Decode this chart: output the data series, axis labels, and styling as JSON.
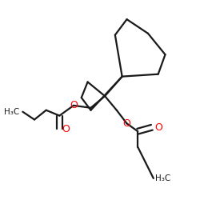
{
  "bg_color": "#ffffff",
  "bond_color": "#1a1a1a",
  "oxygen_color": "#ff0000",
  "line_width": 1.6,
  "figsize": [
    2.5,
    2.5
  ],
  "dpi": 100,
  "xlim": [
    0,
    250
  ],
  "ylim": [
    0,
    250
  ]
}
